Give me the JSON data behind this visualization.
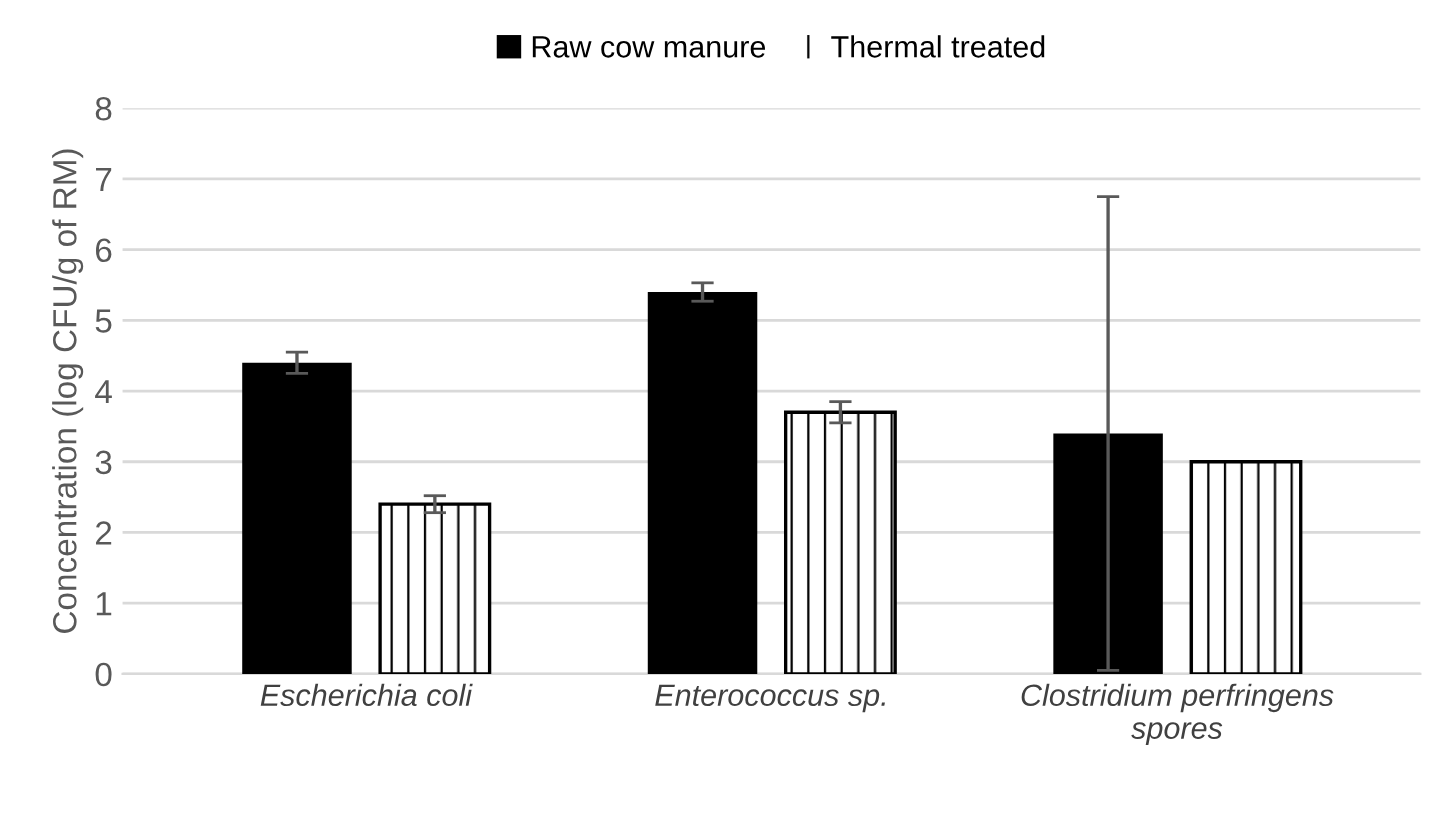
{
  "chart_data": {
    "type": "bar",
    "ylabel": "Concentration (log CFU/g of RM)",
    "categories": [
      "Escherichia coli",
      "Enterococcus sp.",
      "Clostridium perfringens\nspores"
    ],
    "series": [
      {
        "name": "Raw cow manure",
        "color": "#000000",
        "values": [
          4.4,
          5.4,
          3.4
        ],
        "errors": [
          0.15,
          0.13,
          3.35
        ]
      },
      {
        "name": "Thermal treated",
        "color": "#ffffff",
        "values": [
          2.4,
          3.7,
          3.0
        ],
        "errors": [
          0.12,
          0.15,
          null
        ]
      }
    ],
    "ylim": [
      0,
      8
    ],
    "yticks": [
      0,
      1,
      2,
      3,
      4,
      5,
      6,
      7,
      8
    ],
    "grid": "y",
    "legend": "top"
  }
}
